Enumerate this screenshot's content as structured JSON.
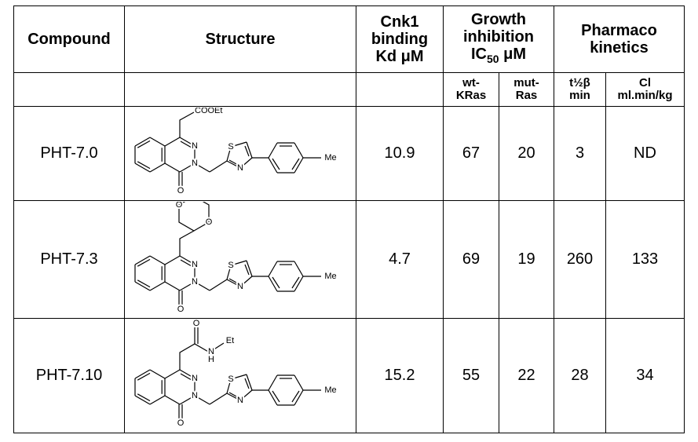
{
  "header": {
    "compound": "Compound",
    "structure": "Structure",
    "cnk1": [
      "Cnk1",
      "binding",
      "Kd μM"
    ],
    "growth": {
      "lines": [
        "Growth",
        "inhibition"
      ],
      "ic": "IC",
      "sub": "50",
      "unit": "μM"
    },
    "pk": [
      "Pharmaco",
      "kinetics"
    ]
  },
  "subheader": {
    "wt": [
      "wt-",
      "KRas"
    ],
    "mut": [
      "mut-",
      "Ras"
    ],
    "t": [
      "t½β",
      "min"
    ],
    "cl": [
      "Cl",
      "ml.min/kg"
    ]
  },
  "rows": [
    {
      "compound": "PHT-7.0",
      "kd": 10.9,
      "wt": 67,
      "mut": 20,
      "t": 3,
      "cl": "ND",
      "structure": {
        "core": [
          "N",
          "N",
          "S",
          "N",
          "Me",
          "O"
        ],
        "side": [
          "COOEt"
        ]
      }
    },
    {
      "compound": "PHT-7.3",
      "kd": 4.7,
      "wt": 69,
      "mut": 19,
      "t": 260,
      "cl": 133,
      "structure": {
        "core": [
          "N",
          "N",
          "S",
          "N",
          "Me",
          "O"
        ],
        "side": [
          "O",
          "O"
        ]
      }
    },
    {
      "compound": "PHT-7.10",
      "kd": 15.2,
      "wt": 55,
      "mut": 22,
      "t": 28,
      "cl": 34,
      "structure": {
        "core": [
          "N",
          "N",
          "S",
          "N",
          "Me",
          "O"
        ],
        "side": [
          "O",
          "N",
          "H",
          "Et"
        ]
      }
    }
  ]
}
